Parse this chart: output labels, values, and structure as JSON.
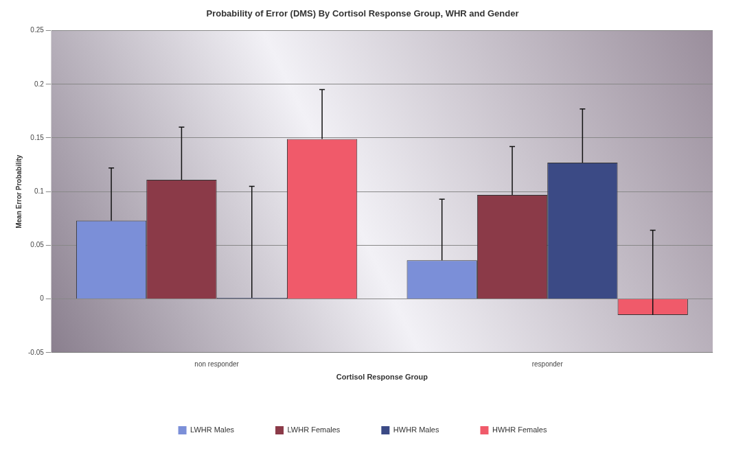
{
  "chart_data": {
    "type": "bar",
    "title": "Probability of Error (DMS) By Cortisol Response Group, WHR and Gender",
    "xlabel": "Cortisol Response Group",
    "ylabel": "Mean Error Probability",
    "categories": [
      "non responder",
      "responder"
    ],
    "series": [
      {
        "name": "LWHR Males",
        "color": "#7b8fd8",
        "values": [
          0.073,
          0.036
        ],
        "errors": [
          [
            0.073,
            0.122
          ],
          [
            0.036,
            0.093
          ]
        ]
      },
      {
        "name": "LWHR Females",
        "color": "#8b3a48",
        "values": [
          0.111,
          0.097
        ],
        "errors": [
          [
            0.111,
            0.16
          ],
          [
            0.097,
            0.142
          ]
        ]
      },
      {
        "name": "HWHR Males",
        "color": "#3b4a85",
        "values": [
          0.001,
          0.127
        ],
        "errors": [
          [
            0.001,
            0.105
          ],
          [
            0.127,
            0.177
          ]
        ]
      },
      {
        "name": "HWHR Females",
        "color": "#f05a6a",
        "values": [
          0.149,
          -0.015
        ],
        "errors": [
          [
            0.149,
            0.195
          ],
          [
            -0.015,
            0.064
          ]
        ]
      }
    ],
    "ylim": [
      -0.05,
      0.25
    ],
    "yticks": [
      -0.05,
      0,
      0.05,
      0.1,
      0.15,
      0.2,
      0.25
    ],
    "grid": "y",
    "legend": "bottom"
  }
}
